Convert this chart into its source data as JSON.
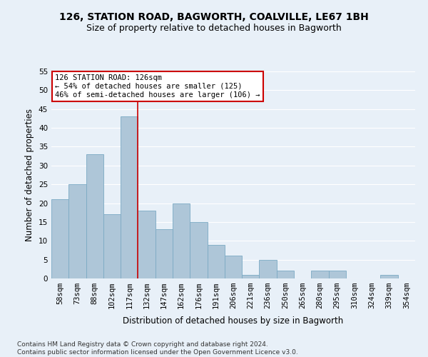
{
  "title1": "126, STATION ROAD, BAGWORTH, COALVILLE, LE67 1BH",
  "title2": "Size of property relative to detached houses in Bagworth",
  "xlabel": "Distribution of detached houses by size in Bagworth",
  "ylabel": "Number of detached properties",
  "categories": [
    "58sqm",
    "73sqm",
    "88sqm",
    "102sqm",
    "117sqm",
    "132sqm",
    "147sqm",
    "162sqm",
    "176sqm",
    "191sqm",
    "206sqm",
    "221sqm",
    "236sqm",
    "250sqm",
    "265sqm",
    "280sqm",
    "295sqm",
    "310sqm",
    "324sqm",
    "339sqm",
    "354sqm"
  ],
  "values": [
    21,
    25,
    33,
    17,
    43,
    18,
    13,
    20,
    15,
    9,
    6,
    1,
    5,
    2,
    0,
    2,
    2,
    0,
    0,
    1,
    0
  ],
  "bar_color": "#aec6d8",
  "bar_edgecolor": "#7baac4",
  "bg_color": "#e8f0f8",
  "grid_color": "#ffffff",
  "vline_x": 4.5,
  "vline_color": "#cc0000",
  "annotation_line1": "126 STATION ROAD: 126sqm",
  "annotation_line2": "← 54% of detached houses are smaller (125)",
  "annotation_line3": "46% of semi-detached houses are larger (106) →",
  "annotation_box_color": "#ffffff",
  "annotation_box_edgecolor": "#cc0000",
  "ylim": [
    0,
    55
  ],
  "yticks": [
    0,
    5,
    10,
    15,
    20,
    25,
    30,
    35,
    40,
    45,
    50,
    55
  ],
  "footer": "Contains HM Land Registry data © Crown copyright and database right 2024.\nContains public sector information licensed under the Open Government Licence v3.0.",
  "title1_fontsize": 10,
  "title2_fontsize": 9,
  "xlabel_fontsize": 8.5,
  "ylabel_fontsize": 8.5,
  "tick_fontsize": 7.5,
  "annotation_fontsize": 7.5,
  "footer_fontsize": 6.5
}
